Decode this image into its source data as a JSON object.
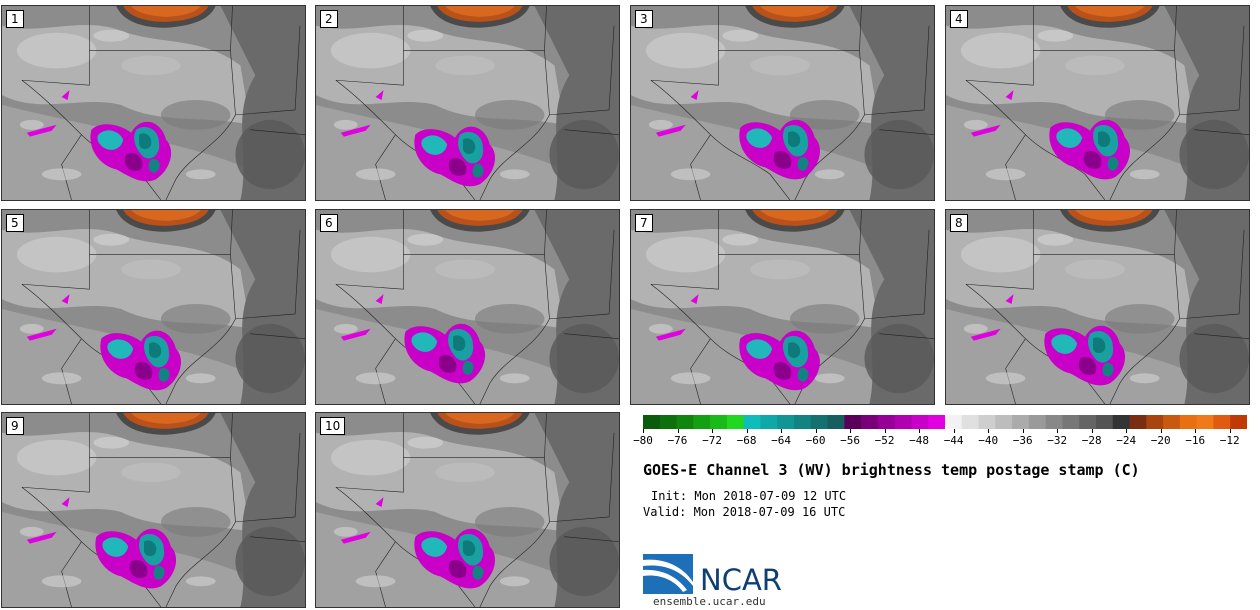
{
  "panels": [
    {
      "label": "1"
    },
    {
      "label": "2"
    },
    {
      "label": "3"
    },
    {
      "label": "4"
    },
    {
      "label": "5"
    },
    {
      "label": "6"
    },
    {
      "label": "7"
    },
    {
      "label": "8"
    },
    {
      "label": "9"
    },
    {
      "label": "10"
    }
  ],
  "colorbar": {
    "tick_labels": [
      "−80",
      "−76",
      "−72",
      "−68",
      "−64",
      "−60",
      "−56",
      "−52",
      "−48",
      "−44",
      "−40",
      "−36",
      "−32",
      "−28",
      "−24",
      "−20",
      "−16",
      "−12"
    ],
    "min": -80,
    "max": -10,
    "colors": [
      "#0a5c0a",
      "#0d700d",
      "#10860f",
      "#13a013",
      "#19bb19",
      "#20d820",
      "#0fbcbc",
      "#0fa8a8",
      "#119595",
      "#138282",
      "#157070",
      "#175f5f",
      "#5a005a",
      "#7a007a",
      "#960096",
      "#b000b0",
      "#c800c8",
      "#e000e0",
      "#f2f2f2",
      "#e0e0e0",
      "#cecece",
      "#bdbdbd",
      "#ababab",
      "#9a9a9a",
      "#888888",
      "#777777",
      "#656565",
      "#545454",
      "#343434",
      "#7a2d10",
      "#a8450f",
      "#c85a10",
      "#e87010",
      "#f07a1a",
      "#e05a10",
      "#c03a08"
    ]
  },
  "title": "GOES-E Channel 3 (WV) brightness temp postage stamp (C)",
  "init": "Init: Mon 2018-07-09 12 UTC",
  "valid": "Valid: Mon 2018-07-09 16 UTC",
  "logo": {
    "text": "NCAR",
    "url": "ensemble.ucar.edu"
  }
}
